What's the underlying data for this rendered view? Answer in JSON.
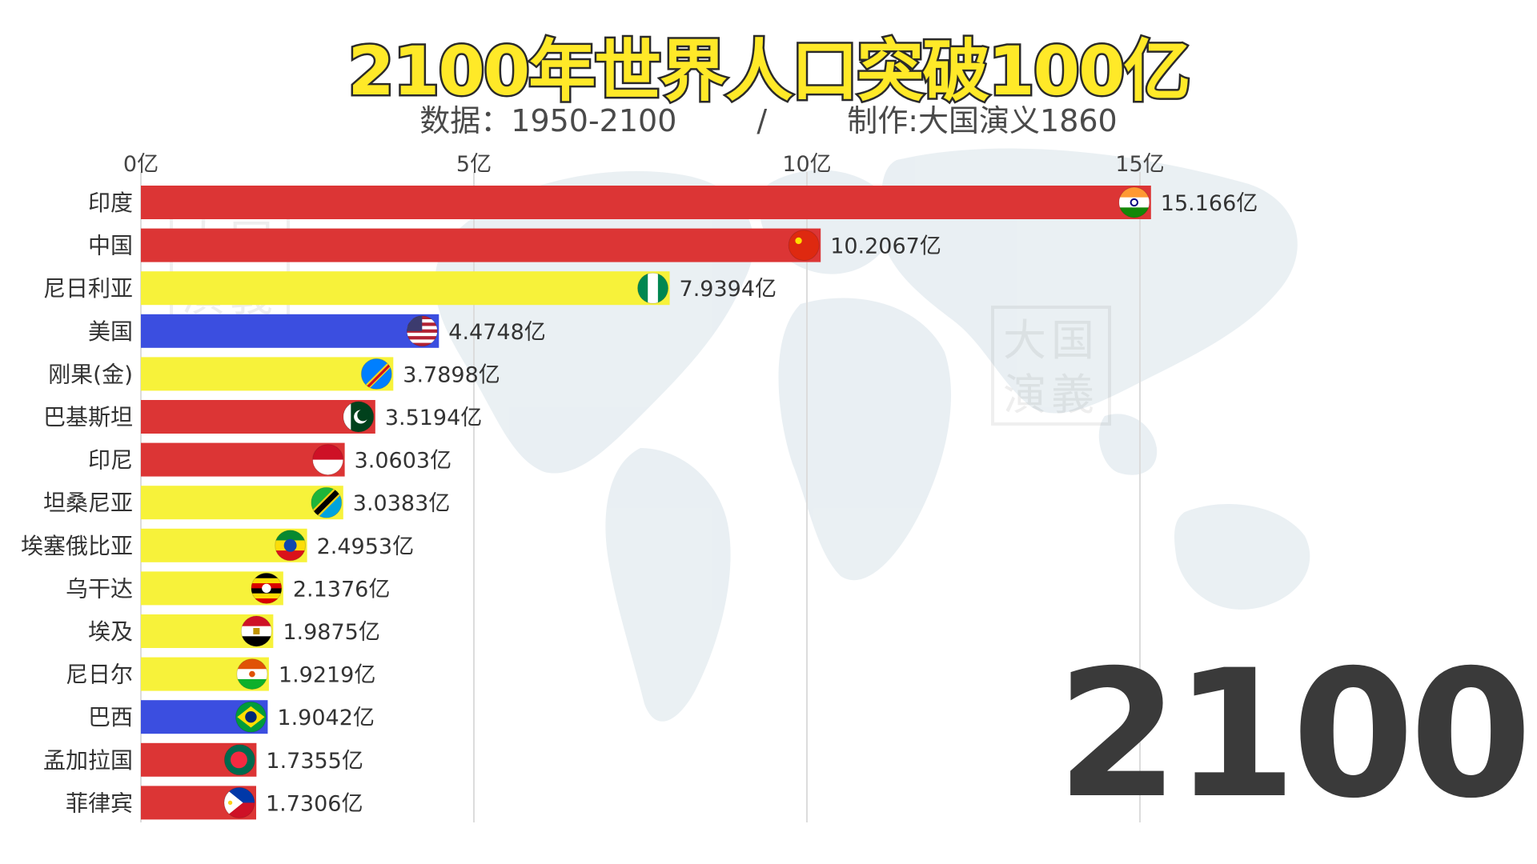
{
  "header": {
    "title": "2100年世界人口突破100亿",
    "subtitle_data": "数据：1950-2100",
    "subtitle_sep": "/",
    "subtitle_author": "制作:大国演义1860"
  },
  "watermark": {
    "line1": "大国",
    "line2": "演義"
  },
  "year_label": "2100",
  "chart_data": {
    "type": "bar",
    "orientation": "horizontal",
    "title": "2100年世界人口突破100亿",
    "unit": "亿",
    "xlim": [
      0,
      16.5
    ],
    "ticks": [
      0,
      5,
      10,
      15
    ],
    "tick_labels": [
      "0亿",
      "5亿",
      "10亿",
      "15亿"
    ],
    "grid": true,
    "categories": [
      "印度",
      "中国",
      "尼日利亚",
      "美国",
      "刚果(金)",
      "巴基斯坦",
      "印尼",
      "坦桑尼亚",
      "埃塞俄比亚",
      "乌干达",
      "埃及",
      "尼日尔",
      "巴西",
      "孟加拉国",
      "菲律宾"
    ],
    "values": [
      15.166,
      10.2067,
      7.9394,
      4.4748,
      3.7898,
      3.5194,
      3.0603,
      3.0383,
      2.4953,
      2.1376,
      1.9875,
      1.9219,
      1.9042,
      1.7355,
      1.7306
    ],
    "value_labels": [
      "15.166亿",
      "10.2067亿",
      "7.9394亿",
      "4.4748亿",
      "3.7898亿",
      "3.5194亿",
      "3.0603亿",
      "3.0383亿",
      "2.4953亿",
      "2.1376亿",
      "1.9875亿",
      "1.9219亿",
      "1.9042亿",
      "1.7355亿",
      "1.7306亿"
    ],
    "bar_colors": [
      "#dc3535",
      "#dc3535",
      "#f7f23a",
      "#3b4ee0",
      "#f7f23a",
      "#dc3535",
      "#dc3535",
      "#f7f23a",
      "#f7f23a",
      "#f7f23a",
      "#f7f23a",
      "#f7f23a",
      "#3b4ee0",
      "#dc3535",
      "#dc3535"
    ],
    "flags": [
      "flag-india-icon",
      "flag-china-icon",
      "flag-nigeria-icon",
      "flag-usa-icon",
      "flag-drc-icon",
      "flag-pakistan-icon",
      "flag-indonesia-icon",
      "flag-tanzania-icon",
      "flag-ethiopia-icon",
      "flag-uganda-icon",
      "flag-egypt-icon",
      "flag-niger-icon",
      "flag-brazil-icon",
      "flag-bangladesh-icon",
      "flag-philippines-icon"
    ]
  }
}
